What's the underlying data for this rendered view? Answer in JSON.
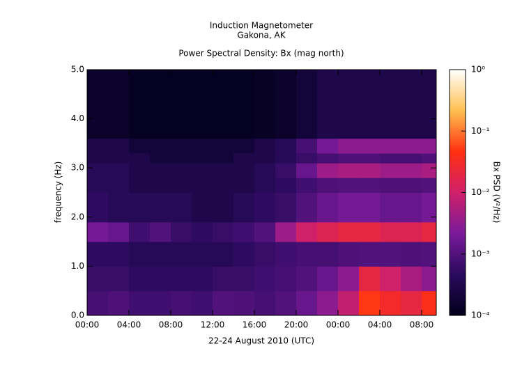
{
  "chart_data": {
    "type": "heatmap",
    "title": "Induction Magnetometer",
    "subtitle": "Gakona, AK",
    "subtitle2": "Power Spectral Density: Bx (mag north)",
    "x_label": "22-24 August 2010 (UTC)",
    "y_label": "frequency (Hz)",
    "colorbar_label": "Bx PSD (V²/Hz)",
    "xlim": [
      0,
      33.4
    ],
    "xticks": [
      {
        "value": 0,
        "label": "00:00"
      },
      {
        "value": 4,
        "label": "04:00"
      },
      {
        "value": 8,
        "label": "08:00"
      },
      {
        "value": 12,
        "label": "12:00"
      },
      {
        "value": 16,
        "label": "16:00"
      },
      {
        "value": 20,
        "label": "20:00"
      },
      {
        "value": 24,
        "label": "00:00"
      },
      {
        "value": 28,
        "label": "04:00"
      },
      {
        "value": 32,
        "label": "08:00"
      }
    ],
    "ylim": [
      0,
      5
    ],
    "yticks": [
      {
        "value": 0,
        "label": "0.0"
      },
      {
        "value": 1,
        "label": "1.0"
      },
      {
        "value": 2,
        "label": "2.0"
      },
      {
        "value": 3,
        "label": "3.0"
      },
      {
        "value": 4,
        "label": "4.0"
      },
      {
        "value": 5,
        "label": "5.0"
      }
    ],
    "x_bins": [
      0,
      2,
      4,
      6,
      8,
      10,
      12,
      14,
      16,
      18,
      20,
      22,
      24,
      26,
      28,
      30,
      32,
      34
    ],
    "y_bins": [
      0,
      0.5,
      1.0,
      1.5,
      1.9,
      2.5,
      2.8,
      3.1,
      3.3,
      3.6,
      5.0
    ],
    "z": [
      [
        0.0008,
        0.0009,
        0.0007,
        0.0007,
        0.0008,
        0.0007,
        0.001,
        0.0009,
        0.0008,
        0.001,
        0.0015,
        0.003,
        0.008,
        0.05,
        0.03,
        0.02,
        0.04
      ],
      [
        0.0006,
        0.0006,
        0.0005,
        0.0005,
        0.0005,
        0.0005,
        0.0006,
        0.0006,
        0.0007,
        0.0008,
        0.001,
        0.0015,
        0.003,
        0.02,
        0.01,
        0.005,
        0.003
      ],
      [
        0.0005,
        0.0005,
        0.0004,
        0.0004,
        0.0004,
        0.0004,
        0.0004,
        0.0005,
        0.0006,
        0.0007,
        0.0008,
        0.0008,
        0.0009,
        0.001,
        0.001,
        0.0009,
        0.001
      ],
      [
        0.002,
        0.0015,
        0.0007,
        0.001,
        0.0006,
        0.0005,
        0.0006,
        0.0007,
        0.001,
        0.004,
        0.01,
        0.015,
        0.02,
        0.02,
        0.015,
        0.015,
        0.02
      ],
      [
        0.0005,
        0.0004,
        0.0004,
        0.0004,
        0.0004,
        0.0003,
        0.0003,
        0.0004,
        0.0005,
        0.0006,
        0.001,
        0.0015,
        0.002,
        0.002,
        0.0015,
        0.0015,
        0.002
      ],
      [
        0.0004,
        0.0004,
        0.0003,
        0.0003,
        0.0003,
        0.0003,
        0.0003,
        0.0003,
        0.0004,
        0.0005,
        0.0007,
        0.0009,
        0.001,
        0.001,
        0.0009,
        0.0009,
        0.001
      ],
      [
        0.0004,
        0.0004,
        0.0003,
        0.0003,
        0.0003,
        0.0003,
        0.0003,
        0.0003,
        0.0004,
        0.0006,
        0.0015,
        0.004,
        0.005,
        0.005,
        0.004,
        0.004,
        0.005
      ],
      [
        0.0003,
        0.0003,
        0.0003,
        0.0002,
        0.0002,
        0.0002,
        0.0002,
        0.0003,
        0.0003,
        0.0004,
        0.0006,
        0.0008,
        0.0009,
        0.0009,
        0.0008,
        0.0008,
        0.0009
      ],
      [
        0.0003,
        0.0003,
        0.0002,
        0.0002,
        0.0002,
        0.0002,
        0.0002,
        0.0002,
        0.0003,
        0.0004,
        0.0008,
        0.002,
        0.003,
        0.003,
        0.003,
        0.003,
        0.003
      ],
      [
        0.00015,
        0.00015,
        0.00012,
        0.00012,
        0.00012,
        0.00012,
        0.00012,
        0.00012,
        0.00013,
        0.00015,
        0.0002,
        0.0003,
        0.0003,
        0.0003,
        0.0003,
        0.0003,
        0.0003
      ]
    ],
    "clim": [
      0.0001,
      1
    ],
    "color_log": true,
    "cticks": [
      {
        "value": 0.0001,
        "label": "10⁻⁴"
      },
      {
        "value": 0.001,
        "label": "10⁻³"
      },
      {
        "value": 0.01,
        "label": "10⁻²"
      },
      {
        "value": 0.1,
        "label": "10⁻¹"
      },
      {
        "value": 1,
        "label": "10⁰"
      }
    ],
    "colorscale": [
      "#00001a",
      "#2a0a5e",
      "#7a1a9a",
      "#d0206a",
      "#ff3010",
      "#ffc050",
      "#ffffff"
    ]
  }
}
